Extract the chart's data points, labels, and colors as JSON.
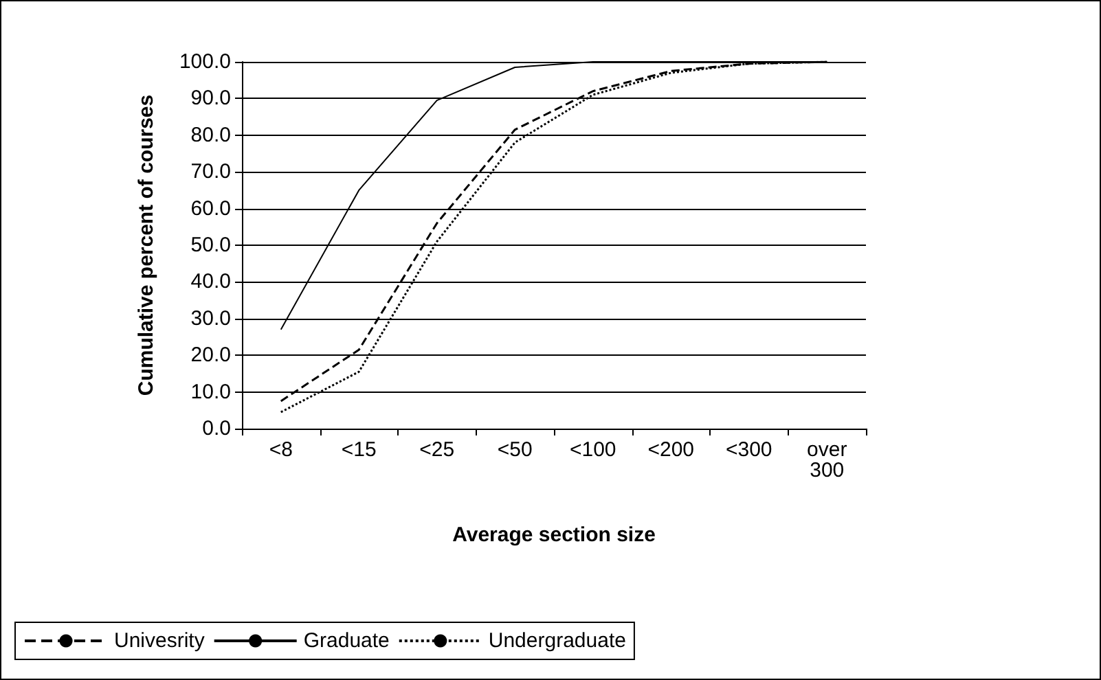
{
  "chart_data": {
    "type": "line",
    "xlabel": "Average section size",
    "ylabel": "Cumulative percent of courses",
    "categories": [
      "<8",
      "<15",
      "<25",
      "<50",
      "<100",
      "<200",
      "<300",
      "over\n300"
    ],
    "series": [
      {
        "name": "Univesrity",
        "color": "#000000",
        "line_style": "dashed",
        "values": [
          7.5,
          21.5,
          56,
          81.5,
          92,
          97.5,
          99.5,
          100
        ]
      },
      {
        "name": "Graduate",
        "color": "#000000",
        "line_style": "solid",
        "values": [
          27,
          65,
          89.5,
          98.5,
          100,
          100,
          100,
          100
        ]
      },
      {
        "name": "Undergraduate",
        "color": "#000000",
        "line_style": "dotted",
        "values": [
          4.5,
          15.5,
          51,
          78,
          91,
          97,
          99.5,
          100
        ]
      }
    ],
    "ylim": [
      0,
      100
    ],
    "yticks": [
      {
        "value": 0,
        "label": "0.0"
      },
      {
        "value": 10,
        "label": "10.0"
      },
      {
        "value": 20,
        "label": "20.0"
      },
      {
        "value": 30,
        "label": "30.0"
      },
      {
        "value": 40,
        "label": "40.0"
      },
      {
        "value": 50,
        "label": "50.0"
      },
      {
        "value": 60,
        "label": "60.0"
      },
      {
        "value": 70,
        "label": "70.0"
      },
      {
        "value": 80,
        "label": "80.0"
      },
      {
        "value": 90,
        "label": "90.0"
      },
      {
        "value": 100,
        "label": "100.0"
      }
    ],
    "grid": "y",
    "legend": "bottom",
    "marker": "none"
  }
}
